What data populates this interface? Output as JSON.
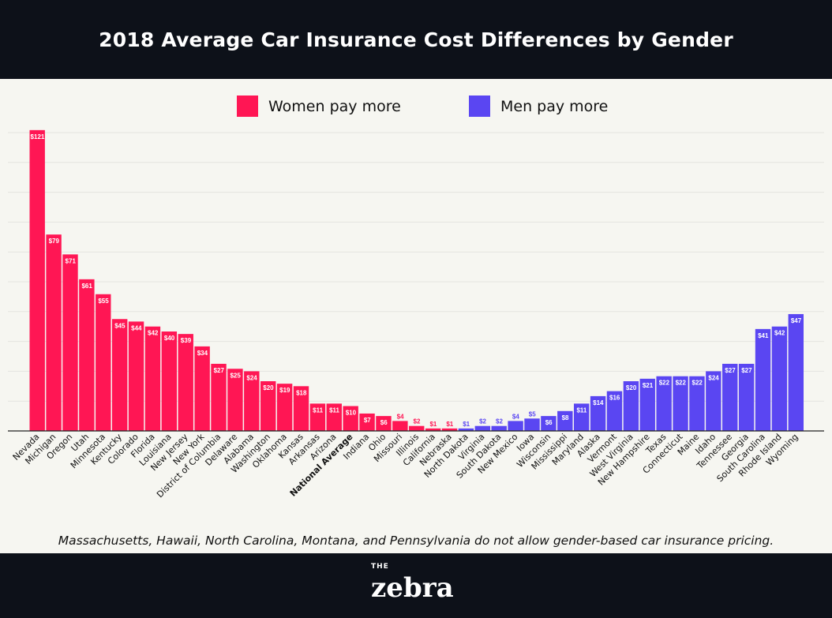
{
  "title": "2018 Average Car Insurance Cost Differences by Gender",
  "legend": [
    {
      "label": "Women pay more",
      "color": "#ff1654"
    },
    {
      "label": "Men pay more",
      "color": "#5a46f2"
    }
  ],
  "note": "Massachusetts, Hawaii, North Carolina, Montana, and Pennsylvania do not allow gender-based car insurance pricing.",
  "brand": {
    "small": "THE",
    "name": "zebra"
  },
  "chart_data": {
    "type": "bar",
    "title": "2018 Average Car Insurance Cost Differences by Gender",
    "xlabel": "",
    "ylabel": "",
    "ylim": [
      0,
      120
    ],
    "grid": true,
    "legend_position": "top",
    "value_prefix": "$",
    "categories": [
      "Nevada",
      "Michigan",
      "Oregon",
      "Utah",
      "Minnesota",
      "Kentucky",
      "Colorado",
      "Florida",
      "Louisiana",
      "New Jersey",
      "New York",
      "District of Columbia",
      "Delaware",
      "Alabama",
      "Washington",
      "Oklahoma",
      "Kansas",
      "Arkansas",
      "Arizona",
      "National Average",
      "Indiana",
      "Ohio",
      "Missouri",
      "Illinois",
      "California",
      "Nebraska",
      "North Dakota",
      "Virginia",
      "South Dakota",
      "New Mexico",
      "Iowa",
      "Wisconsin",
      "Mississippi",
      "Maryland",
      "Alaska",
      "Vermont",
      "West Virginia",
      "New Hampshire",
      "Texas",
      "Connecticut",
      "Maine",
      "Idaho",
      "Tennessee",
      "Georgia",
      "South Carolina",
      "Rhode Island",
      "Wyoming"
    ],
    "values": [
      121,
      79,
      71,
      61,
      55,
      45,
      44,
      42,
      40,
      39,
      34,
      27,
      25,
      24,
      20,
      19,
      18,
      11,
      11,
      10,
      7,
      6,
      4,
      2,
      1,
      1,
      1,
      2,
      2,
      4,
      5,
      6,
      8,
      11,
      14,
      16,
      20,
      21,
      22,
      22,
      22,
      24,
      27,
      27,
      41,
      42,
      47
    ],
    "group": [
      "women",
      "women",
      "women",
      "women",
      "women",
      "women",
      "women",
      "women",
      "women",
      "women",
      "women",
      "women",
      "women",
      "women",
      "women",
      "women",
      "women",
      "women",
      "women",
      "women",
      "women",
      "women",
      "women",
      "women",
      "women",
      "women",
      "men",
      "men",
      "men",
      "men",
      "men",
      "men",
      "men",
      "men",
      "men",
      "men",
      "men",
      "men",
      "men",
      "men",
      "men",
      "men",
      "men",
      "men",
      "men",
      "men",
      "men"
    ]
  }
}
